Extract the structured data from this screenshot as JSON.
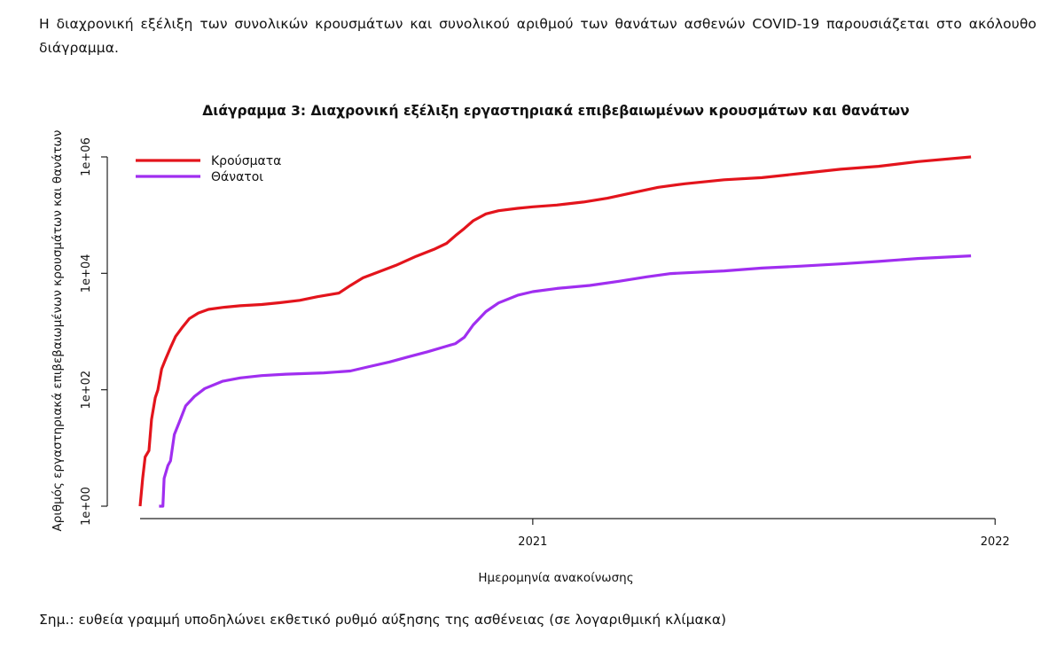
{
  "document": {
    "intro_text": "Η διαχρονική εξέλιξη των συνολικών κρουσμάτων και συνολικού αριθμού των θανάτων ασθενών COVID-19 παρουσιάζεται στο ακόλουθο διάγραμμα.",
    "note_text": "Σημ.: ευθεία γραμμή υποδηλώνει εκθετικό ρυθμό αύξησης της ασθένειας (σε λογαριθμική κλίμακα)"
  },
  "chart_data": {
    "type": "line",
    "title": "Διάγραμμα 3: Διαχρονική εξέλιξη εργαστηριακά επιβεβαιωμένων κρουσμάτων και θανάτων",
    "xlabel": "Ημερομηνία ανακοίνωσης",
    "ylabel": "Αριθμός εργαστηριακά επιβεβαιωμένων κρουσμάτων και θανάτων",
    "y_scale": "log",
    "ylim": [
      1,
      1000000
    ],
    "xlim": [
      "2020-02-26",
      "2021-12-15"
    ],
    "x_ticks": [
      {
        "date": "2021-01-01",
        "label": "2021"
      },
      {
        "date": "2022-01-01",
        "label": "2022"
      }
    ],
    "y_ticks": [
      {
        "value": 1,
        "label": "1e+00"
      },
      {
        "value": 100,
        "label": "1e+02"
      },
      {
        "value": 10000,
        "label": "1e+04"
      },
      {
        "value": 1000000,
        "label": "1e+06"
      }
    ],
    "grid": false,
    "legend_position": "top-left",
    "series": [
      {
        "name": "Κρούσματα",
        "color": "#e3141c",
        "points": [
          [
            "2020-02-26",
            1
          ],
          [
            "2020-02-28",
            3
          ],
          [
            "2020-03-01",
            7
          ],
          [
            "2020-03-04",
            9
          ],
          [
            "2020-03-06",
            31
          ],
          [
            "2020-03-09",
            73
          ],
          [
            "2020-03-11",
            99
          ],
          [
            "2020-03-14",
            228
          ],
          [
            "2020-03-17",
            331
          ],
          [
            "2020-03-21",
            530
          ],
          [
            "2020-03-25",
            821
          ],
          [
            "2020-03-30",
            1156
          ],
          [
            "2020-04-05",
            1673
          ],
          [
            "2020-04-12",
            2081
          ],
          [
            "2020-04-20",
            2401
          ],
          [
            "2020-05-01",
            2591
          ],
          [
            "2020-05-15",
            2770
          ],
          [
            "2020-06-01",
            2917
          ],
          [
            "2020-06-15",
            3121
          ],
          [
            "2020-07-01",
            3432
          ],
          [
            "2020-07-15",
            3964
          ],
          [
            "2020-08-01",
            4587
          ],
          [
            "2020-08-10",
            6177
          ],
          [
            "2020-08-20",
            8381
          ],
          [
            "2020-09-01",
            10524
          ],
          [
            "2020-09-15",
            13730
          ],
          [
            "2020-10-01",
            19613
          ],
          [
            "2020-10-15",
            25802
          ],
          [
            "2020-10-25",
            32752
          ],
          [
            "2020-11-01",
            44414
          ],
          [
            "2020-11-08",
            59000
          ],
          [
            "2020-11-15",
            80000
          ],
          [
            "2020-11-25",
            105000
          ],
          [
            "2020-12-05",
            119000
          ],
          [
            "2020-12-20",
            131000
          ],
          [
            "2021-01-01",
            138850
          ],
          [
            "2021-01-20",
            149000
          ],
          [
            "2021-02-10",
            168000
          ],
          [
            "2021-03-01",
            195000
          ],
          [
            "2021-03-20",
            240000
          ],
          [
            "2021-04-10",
            300000
          ],
          [
            "2021-05-01",
            345000
          ],
          [
            "2021-06-01",
            405000
          ],
          [
            "2021-07-01",
            440000
          ],
          [
            "2021-08-01",
            520000
          ],
          [
            "2021-09-01",
            615000
          ],
          [
            "2021-10-01",
            690000
          ],
          [
            "2021-11-01",
            830000
          ],
          [
            "2021-12-13",
            1000000
          ]
        ]
      },
      {
        "name": "Θάνατοι",
        "color": "#a02ef0",
        "points": [
          [
            "2020-03-12",
            1
          ],
          [
            "2020-03-15",
            1
          ],
          [
            "2020-03-16",
            3
          ],
          [
            "2020-03-19",
            5
          ],
          [
            "2020-03-21",
            6
          ],
          [
            "2020-03-24",
            17
          ],
          [
            "2020-03-28",
            28
          ],
          [
            "2020-04-02",
            53
          ],
          [
            "2020-04-09",
            77
          ],
          [
            "2020-04-17",
            105
          ],
          [
            "2020-05-01",
            140
          ],
          [
            "2020-05-15",
            160
          ],
          [
            "2020-06-01",
            175
          ],
          [
            "2020-06-20",
            185
          ],
          [
            "2020-07-20",
            195
          ],
          [
            "2020-08-10",
            210
          ],
          [
            "2020-08-25",
            250
          ],
          [
            "2020-09-10",
            300
          ],
          [
            "2020-09-25",
            370
          ],
          [
            "2020-10-10",
            450
          ],
          [
            "2020-10-25",
            560
          ],
          [
            "2020-11-01",
            620
          ],
          [
            "2020-11-08",
            800
          ],
          [
            "2020-11-15",
            1300
          ],
          [
            "2020-11-25",
            2200
          ],
          [
            "2020-12-05",
            3100
          ],
          [
            "2020-12-20",
            4200
          ],
          [
            "2021-01-01",
            4838
          ],
          [
            "2021-01-20",
            5500
          ],
          [
            "2021-02-15",
            6200
          ],
          [
            "2021-03-10",
            7300
          ],
          [
            "2021-04-01",
            8700
          ],
          [
            "2021-04-20",
            9900
          ],
          [
            "2021-06-01",
            11000
          ],
          [
            "2021-07-01",
            12300
          ],
          [
            "2021-08-01",
            13300
          ],
          [
            "2021-09-01",
            14500
          ],
          [
            "2021-10-01",
            16000
          ],
          [
            "2021-11-01",
            18000
          ],
          [
            "2021-12-13",
            20000
          ]
        ]
      }
    ]
  }
}
